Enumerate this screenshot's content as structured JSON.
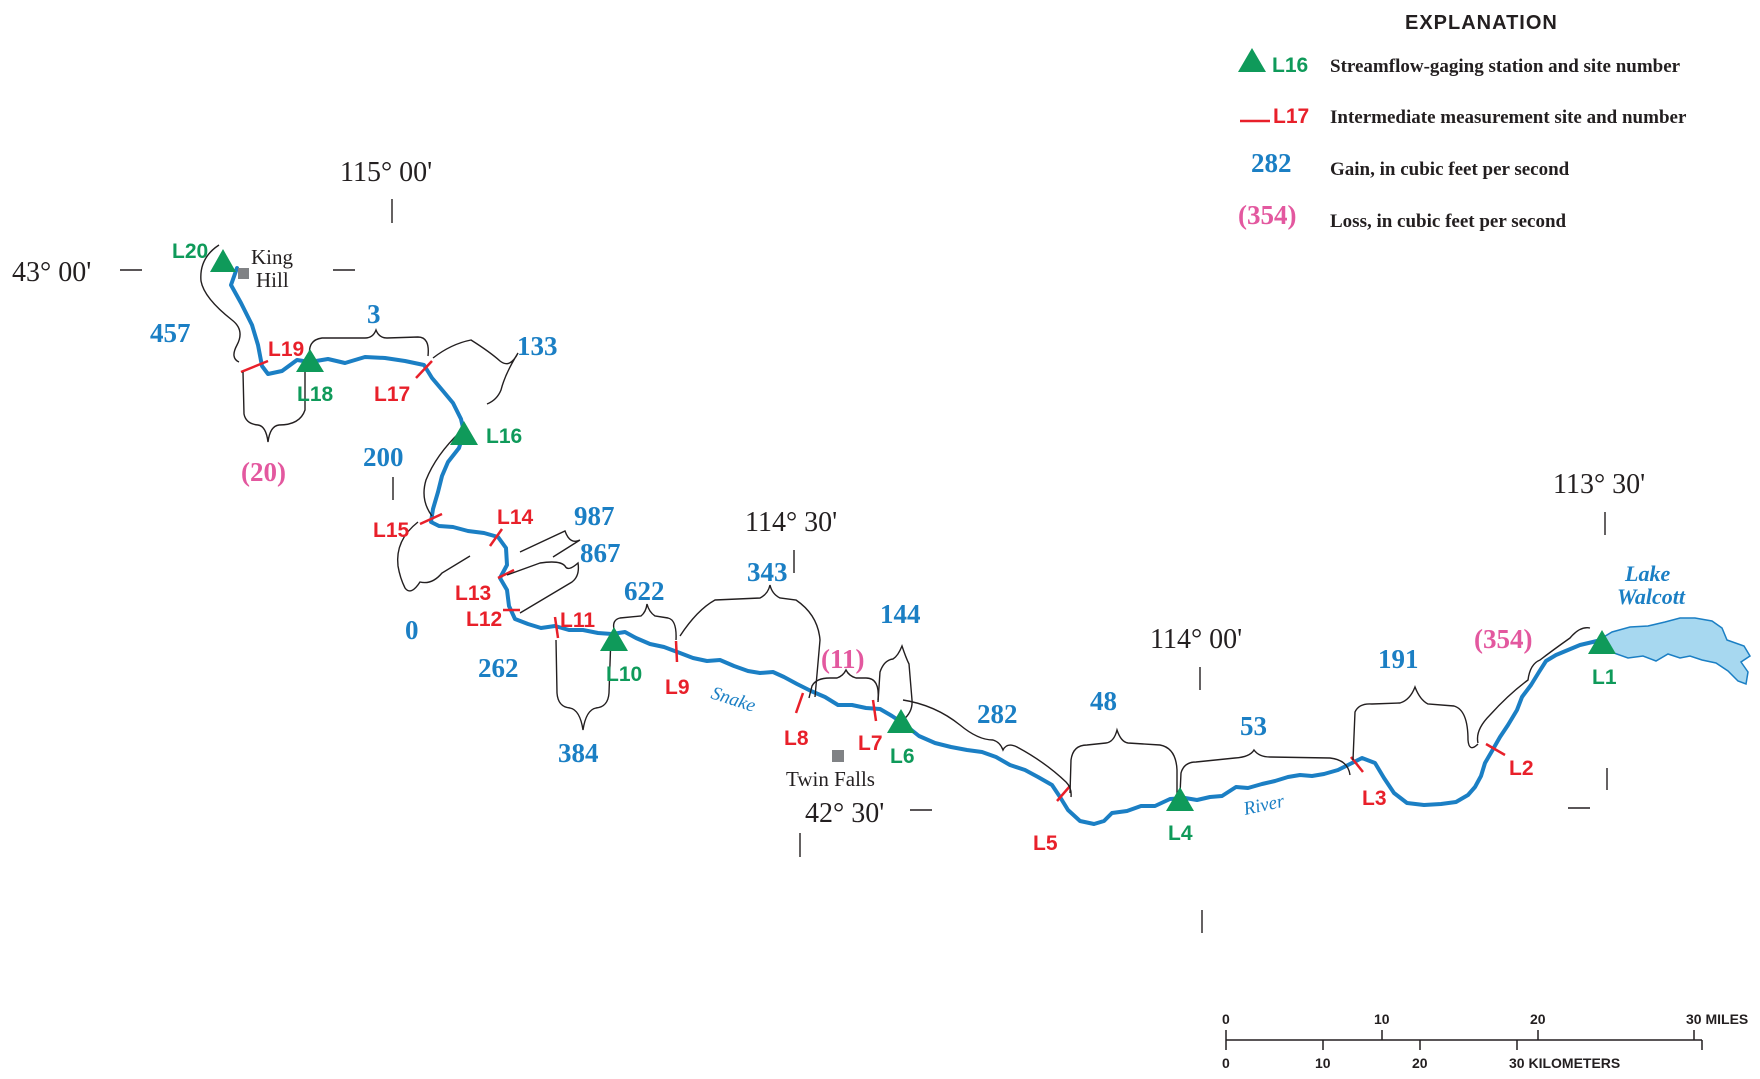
{
  "explanation": {
    "title": "EXPLANATION",
    "station_label": "L16",
    "station_text": "Streamflow-gaging station and site number",
    "measurement_label": "L17",
    "measurement_text": "Intermediate measurement site and number",
    "gain_label": "282",
    "gain_text": "Gain, in cubic feet per second",
    "loss_label": "(354)",
    "loss_text": "Loss, in cubic feet per second"
  },
  "coordinates": {
    "lon_115_00": "115° 00'",
    "lon_114_30": "114° 30'",
    "lon_114_00": "114° 00'",
    "lon_113_30": "113° 30'",
    "lat_43_00": "43° 00'",
    "lat_42_30": "42° 30'"
  },
  "places": {
    "king_hill_1": "King",
    "king_hill_2": "Hill",
    "twin_falls": "Twin Falls",
    "lake_1": "Lake",
    "lake_2": "Walcott",
    "river_1": "Snake",
    "river_2": "River"
  },
  "gaging_stations": [
    "L20",
    "L18",
    "L16",
    "L10",
    "L6",
    "L4",
    "L1"
  ],
  "measurement_sites": [
    "L19",
    "L17",
    "L15",
    "L14",
    "L13",
    "L12",
    "L11",
    "L9",
    "L8",
    "L7",
    "L5",
    "L3",
    "L2"
  ],
  "gains": [
    "457",
    "3",
    "133",
    "200",
    "987",
    "867",
    "0",
    "262",
    "622",
    "343",
    "384",
    "144",
    "282",
    "48",
    "53",
    "191"
  ],
  "losses": [
    "(20)",
    "(11)",
    "(354)"
  ],
  "scale": {
    "miles": [
      "0",
      "10",
      "20",
      "30 MILES"
    ],
    "kilometers": [
      "0",
      "10",
      "20",
      "30 KILOMETERS"
    ]
  },
  "colors": {
    "river": "#1b7fc4",
    "lake": "#a7d8f0",
    "gaging_station": "#0f9a5a",
    "measurement_site": "#e8202a",
    "gain": "#1b7fc4",
    "loss": "#e3589f"
  }
}
